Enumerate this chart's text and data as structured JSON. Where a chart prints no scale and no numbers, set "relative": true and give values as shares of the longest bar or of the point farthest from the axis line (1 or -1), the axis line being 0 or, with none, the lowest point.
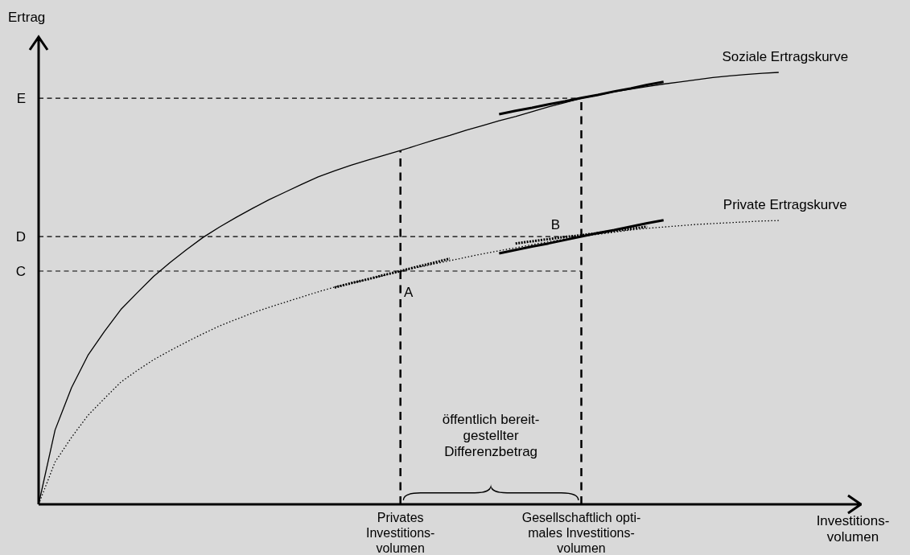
{
  "chart_data": {
    "type": "line",
    "relative": true,
    "ylabel": "Ertrag",
    "xlabel": "Investitions-\nvolumen",
    "categories": [
      null,
      null,
      null,
      null,
      null,
      null,
      null,
      null,
      null,
      null,
      null,
      null,
      null,
      null,
      null,
      null,
      null,
      null,
      null,
      null,
      null,
      null,
      "Privates\nInvestitions-\nvolumen",
      null,
      null,
      null,
      null,
      null,
      null,
      null,
      null,
      null,
      null,
      "Gesellschaftlich opti-\nmales Investitions-\nvolumen",
      null,
      null,
      null,
      null,
      null,
      null,
      null,
      null,
      null,
      null,
      null,
      null,
      null,
      null,
      null,
      null,
      null
    ],
    "series": [
      {
        "name": "Soziale Ertragskurve",
        "color": "#000000",
        "line_style": "solid",
        "values": [
          0,
          0.172,
          0.27,
          0.345,
          0.4,
          0.451,
          0.49,
          0.528,
          0.56,
          0.59,
          0.618,
          0.642,
          0.664,
          0.685,
          0.705,
          0.723,
          0.741,
          0.758,
          0.772,
          0.785,
          0.797,
          0.808,
          0.819,
          0.831,
          0.843,
          0.854,
          0.866,
          0.877,
          0.888,
          0.898,
          0.909,
          0.92,
          0.93,
          0.94,
          0.947,
          0.955,
          0.961,
          0.967,
          0.973,
          0.978,
          0.983,
          0.988,
          0.992,
          0.995,
          0.998,
          1,
          null,
          null,
          null,
          null,
          null
        ]
      },
      {
        "name": "Private Ertragskurve",
        "color": "#000000",
        "line_style": "dotted",
        "values": [
          0,
          0.098,
          0.155,
          0.206,
          0.245,
          0.283,
          0.31,
          0.335,
          0.356,
          0.376,
          0.395,
          0.413,
          0.428,
          0.443,
          0.456,
          0.468,
          0.48,
          0.492,
          0.503,
          0.512,
          0.521,
          0.53,
          0.54,
          0.548,
          0.556,
          0.564,
          0.572,
          0.58,
          0.587,
          0.594,
          0.601,
          0.608,
          0.614,
          0.62,
          0.625,
          0.63,
          0.635,
          0.639,
          0.642,
          0.645,
          0.648,
          0.65,
          0.652,
          0.654,
          0.656,
          0.657,
          null,
          null,
          null,
          null,
          null
        ]
      },
      {
        "color": "#000000",
        "line_style": "solid",
        "values": [
          null,
          null,
          null,
          null,
          null,
          null,
          null,
          null,
          null,
          null,
          null,
          null,
          null,
          null,
          null,
          null,
          null,
          null,
          null,
          null,
          null,
          null,
          null,
          null,
          null,
          null,
          null,
          null,
          0.903,
          0.911,
          0.918,
          0.926,
          0.933,
          0.941,
          0.948,
          0.956,
          0.963,
          0.971,
          0.978,
          null,
          null,
          null,
          null,
          null,
          null,
          null,
          null,
          null,
          null,
          null,
          null
        ]
      },
      {
        "color": "#000000",
        "line_style": "solid",
        "values": [
          null,
          null,
          null,
          null,
          null,
          null,
          null,
          null,
          null,
          null,
          null,
          null,
          null,
          null,
          null,
          null,
          null,
          null,
          null,
          null,
          null,
          null,
          null,
          null,
          null,
          null,
          null,
          null,
          0.581,
          0.589,
          0.597,
          0.604,
          0.612,
          0.62,
          0.628,
          0.635,
          0.643,
          0.651,
          0.658,
          null,
          null,
          null,
          null,
          null,
          null,
          null,
          null,
          null,
          null,
          null,
          null
        ]
      },
      {
        "color": "#000000",
        "line_style": "dotted",
        "values": [
          null,
          null,
          null,
          null,
          null,
          null,
          null,
          null,
          null,
          null,
          null,
          null,
          null,
          null,
          null,
          null,
          null,
          null,
          0.502,
          0.512,
          0.521,
          0.531,
          0.54,
          0.55,
          0.559,
          0.569,
          null,
          null,
          null,
          null,
          null,
          null,
          null,
          null,
          null,
          null,
          null,
          null,
          null,
          null,
          null,
          null,
          null,
          null,
          null,
          null,
          null,
          null,
          null,
          null,
          null
        ]
      },
      {
        "color": "#000000",
        "line_style": "dotted",
        "values": [
          null,
          null,
          null,
          null,
          null,
          null,
          null,
          null,
          null,
          null,
          null,
          null,
          null,
          null,
          null,
          null,
          null,
          null,
          null,
          null,
          null,
          null,
          null,
          null,
          null,
          null,
          null,
          null,
          null,
          0.604,
          0.609,
          0.614,
          0.619,
          0.623,
          0.628,
          0.633,
          0.638,
          0.643,
          null,
          null,
          null,
          null,
          null,
          null,
          null,
          null,
          null,
          null,
          null,
          null,
          null
        ]
      }
    ],
    "ref_lines": [
      {
        "axis": "y",
        "value": 0.94,
        "label": "E",
        "line_style": "dashed",
        "color": "#000000"
      },
      {
        "axis": "y",
        "value": 0.62,
        "label": "D",
        "line_style": "dashed",
        "color": "#000000"
      },
      {
        "axis": "y",
        "value": 0.54,
        "label": "C",
        "line_style": "dashed",
        "color": "#000000"
      },
      {
        "axis": "x",
        "value": "Privates\nInvestitions-\nvolumen",
        "line_style": "dashed",
        "color": "#000000"
      },
      {
        "axis": "x",
        "value": "Gesellschaftlich opti-\nmales Investitions-\nvolumen",
        "line_style": "dashed",
        "color": "#000000"
      }
    ],
    "annotations": [
      {
        "text": "A",
        "x": "Privates\nInvestitions-\nvolumen",
        "y": 0.54
      },
      {
        "text": "B",
        "x": "Gesellschaftlich opti-\nmales Investitions-\nvolumen",
        "y": 0.62
      },
      "öffentlich bereit-\ngestellter\nDifferenzbetrag"
    ]
  }
}
